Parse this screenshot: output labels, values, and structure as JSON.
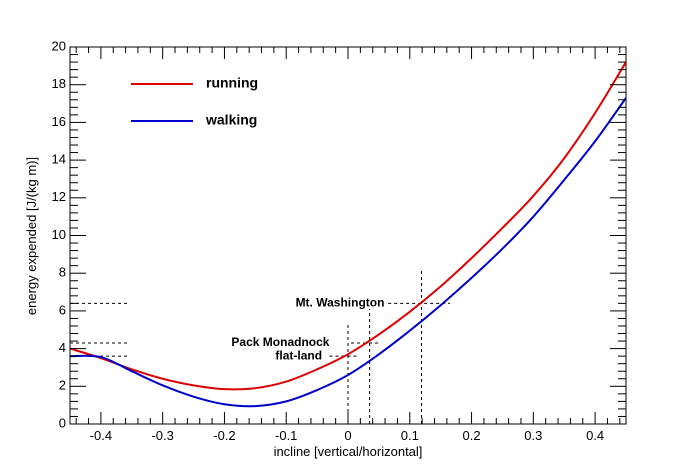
{
  "chart_data": {
    "type": "line",
    "title": "",
    "xlabel": "incline [vertical/horizontal]",
    "ylabel": "energy expended [J/(kg m)]",
    "xlim": [
      -0.45,
      0.45
    ],
    "ylim": [
      0,
      20
    ],
    "xticks": [
      -0.4,
      -0.3,
      -0.2,
      -0.1,
      0,
      0.1,
      0.2,
      0.3,
      0.4
    ],
    "xtick_labels": [
      "-0.4",
      "-0.3",
      "-0.2",
      "-0.1",
      "0",
      "0.1",
      "0.2",
      "0.3",
      "0.4"
    ],
    "yticks": [
      0,
      2,
      4,
      6,
      8,
      10,
      12,
      14,
      16,
      18,
      20
    ],
    "ytick_labels": [
      "0",
      "2",
      "4",
      "6",
      "8",
      "10",
      "12",
      "14",
      "16",
      "18",
      "20"
    ],
    "grid": false,
    "legend": {
      "position": "top-left",
      "entries": [
        {
          "label": "running",
          "color": "#dd0000"
        },
        {
          "label": "walking",
          "color": "#0000cc"
        }
      ]
    },
    "series": [
      {
        "name": "running",
        "color": "#dd0000",
        "x": [
          -0.45,
          -0.4,
          -0.35,
          -0.3,
          -0.25,
          -0.2,
          -0.15,
          -0.1,
          -0.05,
          0,
          0.05,
          0.1,
          0.15,
          0.2,
          0.25,
          0.3,
          0.35,
          0.4,
          0.45
        ],
        "y": [
          4.0,
          3.5,
          2.9,
          2.4,
          2.05,
          1.85,
          1.9,
          2.25,
          2.9,
          3.7,
          4.75,
          5.95,
          7.3,
          8.8,
          10.4,
          12.1,
          14.1,
          16.5,
          19.2
        ]
      },
      {
        "name": "walking",
        "color": "#0000cc",
        "x": [
          -0.45,
          -0.4,
          -0.35,
          -0.3,
          -0.25,
          -0.2,
          -0.15,
          -0.1,
          -0.05,
          0,
          0.05,
          0.1,
          0.15,
          0.2,
          0.25,
          0.3,
          0.35,
          0.4,
          0.45
        ],
        "y": [
          3.6,
          3.55,
          2.8,
          2.05,
          1.45,
          1.05,
          0.95,
          1.2,
          1.8,
          2.6,
          3.7,
          4.95,
          6.3,
          7.75,
          9.3,
          11.0,
          12.95,
          15.0,
          17.3
        ]
      }
    ],
    "annotations": [
      {
        "label": "Mt. Washington",
        "x": 0.119,
        "y": 6.4
      },
      {
        "label": "Pack Monadnock",
        "x": 0.035,
        "y": 4.3
      },
      {
        "label": "flat-land",
        "x": 0.0,
        "y": 3.6
      }
    ]
  }
}
